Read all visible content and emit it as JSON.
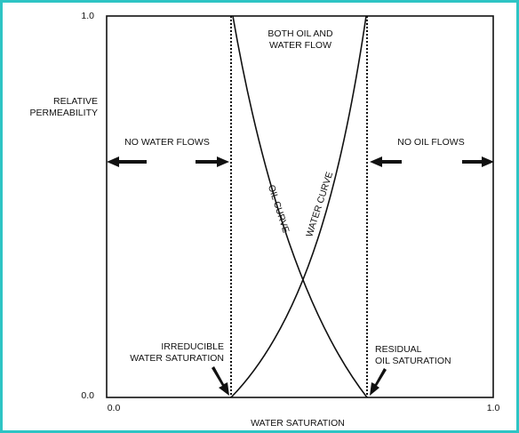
{
  "axes": {
    "y_label": [
      "RELATIVE",
      "PERMEABILITY"
    ],
    "y_ticks": [
      "1.0",
      "0.0"
    ],
    "x_ticks": [
      "0.0",
      "1.0"
    ],
    "x_label": "WATER SATURATION"
  },
  "regions": {
    "middle": [
      "BOTH OIL AND",
      "WATER FLOW"
    ],
    "left": "NO WATER FLOWS",
    "right": "NO OIL FLOWS"
  },
  "curves": {
    "oil": "OIL CURVE",
    "water": "WATER CURVE"
  },
  "annotations": {
    "irreducible": [
      "IRREDUCIBLE",
      "WATER SATURATION"
    ],
    "residual": [
      "RESIDUAL",
      "OIL SATURATION"
    ]
  }
}
